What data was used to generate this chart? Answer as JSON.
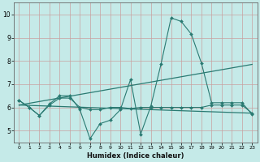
{
  "xlabel": "Humidex (Indice chaleur)",
  "xlim": [
    -0.5,
    23.5
  ],
  "ylim": [
    4.5,
    10.5
  ],
  "yticks": [
    5,
    6,
    7,
    8,
    9,
    10
  ],
  "xticks": [
    0,
    1,
    2,
    3,
    4,
    5,
    6,
    7,
    8,
    9,
    10,
    11,
    12,
    13,
    14,
    15,
    16,
    17,
    18,
    19,
    20,
    21,
    22,
    23
  ],
  "bg_color": "#c5eae8",
  "grid_color": "#c8a0a0",
  "line_color": "#2a7a72",
  "lines": [
    {
      "x": [
        0,
        1,
        2,
        3,
        4,
        5,
        6,
        7,
        8,
        9,
        10,
        11,
        12,
        13,
        14,
        15,
        16,
        17,
        18,
        19,
        20,
        21,
        22,
        23
      ],
      "y": [
        6.3,
        6.0,
        5.65,
        6.15,
        6.5,
        6.5,
        5.9,
        4.65,
        5.3,
        5.45,
        5.9,
        7.2,
        4.85,
        6.05,
        7.85,
        9.85,
        9.7,
        9.15,
        7.9,
        6.2,
        6.2,
        6.2,
        6.2,
        5.7
      ],
      "marker": true
    },
    {
      "x": [
        0,
        1,
        2,
        3,
        4,
        5,
        6,
        7,
        8,
        9,
        10,
        11,
        12,
        13,
        14,
        15,
        16,
        17,
        18,
        19,
        20,
        21,
        22,
        23
      ],
      "y": [
        6.3,
        6.0,
        5.65,
        6.1,
        6.4,
        6.4,
        6.0,
        5.9,
        5.9,
        6.0,
        6.0,
        5.95,
        6.0,
        6.0,
        6.0,
        6.0,
        6.0,
        6.0,
        6.0,
        6.1,
        6.1,
        6.1,
        6.1,
        5.75
      ],
      "marker": true
    },
    {
      "x": [
        0,
        23
      ],
      "y": [
        6.1,
        7.85
      ],
      "marker": false
    },
    {
      "x": [
        0,
        23
      ],
      "y": [
        6.1,
        5.75
      ],
      "marker": false
    }
  ]
}
